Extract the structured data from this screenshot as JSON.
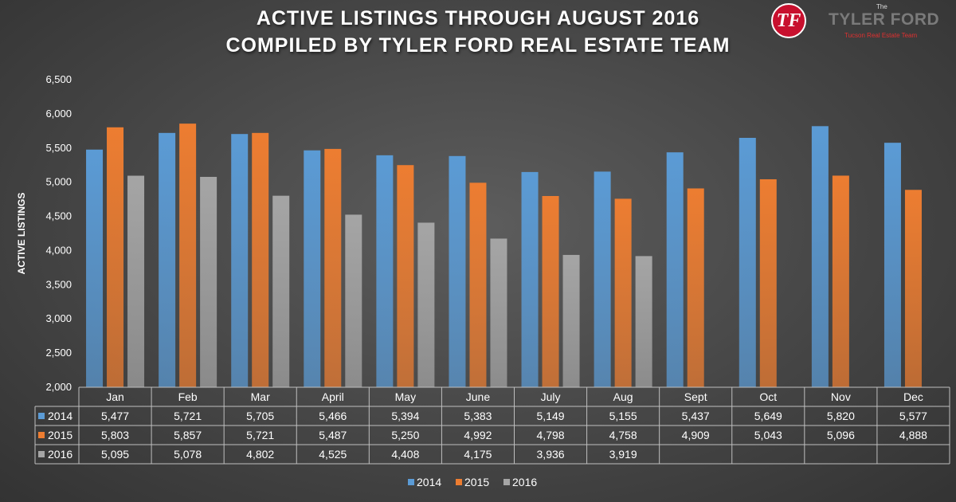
{
  "page": {
    "title_line1": "ACTIVE LISTINGS THROUGH AUGUST 2016",
    "title_line2": "COMPILED BY TYLER FORD REAL ESTATE TEAM"
  },
  "logo": {
    "mark": "TF",
    "the": "The",
    "name": "TYLER FORD",
    "tagline": "Tucson Real Estate Team"
  },
  "chart_data": {
    "type": "bar",
    "title": "ACTIVE LISTINGS THROUGH AUGUST 2016",
    "subtitle": "COMPILED BY TYLER FORD REAL ESTATE TEAM",
    "ylabel": "ACTIVE LISTINGS",
    "xlabel": "",
    "ylim": [
      2000,
      6500
    ],
    "yticks": [
      2000,
      2500,
      3000,
      3500,
      4000,
      4500,
      5000,
      5500,
      6000,
      6500
    ],
    "ytick_labels": [
      "2,000",
      "2,500",
      "3,000",
      "3,500",
      "4,000",
      "4,500",
      "5,000",
      "5,500",
      "6,000",
      "6,500"
    ],
    "grid": false,
    "legend_position": "bottom",
    "data_table": true,
    "categories": [
      "Jan",
      "Feb",
      "Mar",
      "April",
      "May",
      "June",
      "July",
      "Aug",
      "Sept",
      "Oct",
      "Nov",
      "Dec"
    ],
    "series": [
      {
        "name": "2014",
        "color": "#5b9bd5",
        "values": [
          5477,
          5721,
          5705,
          5466,
          5394,
          5383,
          5149,
          5155,
          5437,
          5649,
          5820,
          5577
        ],
        "labels": [
          "5,477",
          "5,721",
          "5,705",
          "5,466",
          "5,394",
          "5,383",
          "5,149",
          "5,155",
          "5,437",
          "5,649",
          "5,820",
          "5,577"
        ]
      },
      {
        "name": "2015",
        "color": "#ed7d31",
        "values": [
          5803,
          5857,
          5721,
          5487,
          5250,
          4992,
          4798,
          4758,
          4909,
          5043,
          5096,
          4888
        ],
        "labels": [
          "5,803",
          "5,857",
          "5,721",
          "5,487",
          "5,250",
          "4,992",
          "4,798",
          "4,758",
          "4,909",
          "5,043",
          "5,096",
          "4,888"
        ]
      },
      {
        "name": "2016",
        "color": "#a5a5a5",
        "values": [
          5095,
          5078,
          4802,
          4525,
          4408,
          4175,
          3936,
          3919,
          null,
          null,
          null,
          null
        ],
        "labels": [
          "5,095",
          "5,078",
          "4,802",
          "4,525",
          "4,408",
          "4,175",
          "3,936",
          "3,919",
          "",
          "",
          "",
          ""
        ]
      }
    ]
  }
}
